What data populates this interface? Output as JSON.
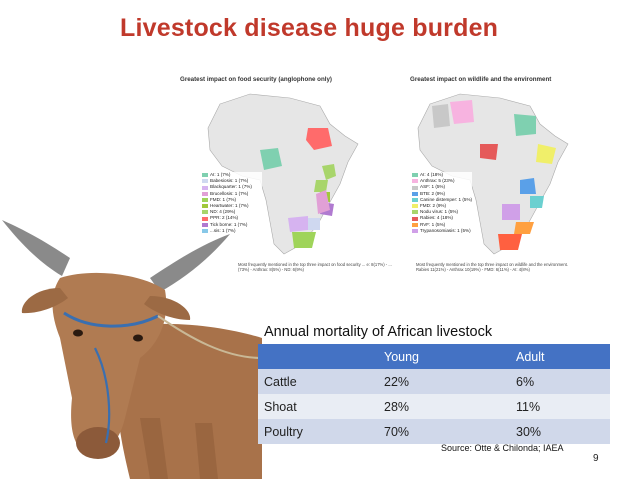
{
  "slide": {
    "title": "Livestock disease huge burden",
    "page_number": "9",
    "accent_color": "#c0392b"
  },
  "maps": {
    "left": {
      "caption": "Greatest impact on food security (anglophone only)",
      "legend": [
        "AI: 1 (7%)",
        "Babesiosis: 1 (7%)",
        "Blackquarter: 1 (7%)",
        "Brucellosis: 1 (7%)",
        "FMD: 1 (7%)",
        "Heartwater: 1 (7%)",
        "ND: 4 (29%)",
        "PPR: 2 (14%)",
        "Tick borne: 1 (7%)",
        "...sis: 1 (7%)"
      ],
      "footnote": "Most frequently mentioned in the top three impact on food security ... e: 8(17%) - ... (73%) - Anthrax: 8(5%) - ND: 6(9%)"
    },
    "right": {
      "caption": "Greatest impact on wildlife and the environment",
      "legend": [
        "AI: 4 (18%)",
        "Anthrax: 5 (23%)",
        "ASF: 1 (5%)",
        "BTB: 2 (9%)",
        "Canine distemper: 1 (5%)",
        "FMD: 2 (9%)",
        "Nodu virus: 1 (5%)",
        "Rabies: 4 (18%)",
        "RVF: 1 (5%)",
        "Trypanosomiasis: 1 (5%)"
      ],
      "footnote": "Most frequently mentioned in the top three impact on wildlife and the environment. Rabies 11(21%) - Anthrax 10(19%) - FMD: 6(11%) - AI: 4(8%)"
    }
  },
  "table": {
    "title": "Annual mortality of African livestock",
    "headers": [
      "",
      "Young",
      "Adult"
    ],
    "rows": [
      {
        "animal": "Cattle",
        "young": "22%",
        "adult": "6%"
      },
      {
        "animal": "Shoat",
        "young": "28%",
        "adult": "11%"
      },
      {
        "animal": "Poultry",
        "young": "70%",
        "adult": "30%"
      }
    ],
    "header_color": "#4472c4"
  },
  "source": "Source: Otte & Chilonda; IAEA",
  "icons": {
    "cow_image": "cow-illustration",
    "maps": "africa-map"
  }
}
